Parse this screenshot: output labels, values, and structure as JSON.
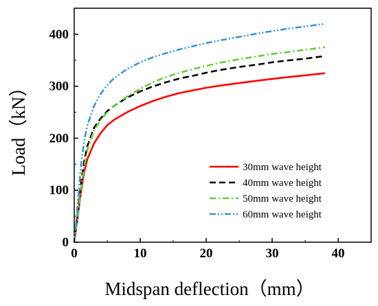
{
  "chart_data": {
    "type": "line",
    "title": "",
    "xlabel": "Midspan deflection（mm）",
    "ylabel": "Load（kN）",
    "xlim": [
      0,
      45
    ],
    "ylim": [
      0,
      450
    ],
    "xticks": [
      0,
      10,
      20,
      30,
      40
    ],
    "yticks": [
      0,
      100,
      200,
      300,
      400
    ],
    "grid": false,
    "legend_position": "bottom-right",
    "series": [
      {
        "name": "30mm wave height",
        "color": "#ff0000",
        "dash": "solid",
        "x": [
          0,
          0.5,
          1,
          1.5,
          2,
          3,
          4,
          5,
          6,
          8,
          10,
          12,
          14,
          16,
          18,
          20,
          22,
          25,
          28,
          30,
          32,
          35,
          38
        ],
        "y": [
          0,
          45,
          95,
          135,
          160,
          190,
          210,
          225,
          235,
          250,
          262,
          272,
          280,
          287,
          292,
          297,
          301,
          306,
          311,
          314,
          317,
          321,
          325
        ]
      },
      {
        "name": "40mm wave height",
        "color": "#000000",
        "dash": "dash",
        "x": [
          0,
          0.5,
          1,
          1.5,
          2,
          3,
          4,
          5,
          6,
          8,
          10,
          12,
          14,
          16,
          18,
          20,
          22,
          25,
          28,
          30,
          32,
          35,
          38
        ],
        "y": [
          0,
          55,
          110,
          155,
          185,
          220,
          238,
          252,
          262,
          278,
          290,
          300,
          308,
          315,
          320,
          326,
          331,
          337,
          342,
          346,
          349,
          353,
          358
        ]
      },
      {
        "name": "50mm wave height",
        "color": "#66cc33",
        "dash": "dashdot",
        "x": [
          0,
          0.5,
          1,
          1.5,
          2,
          3,
          4,
          5,
          6,
          8,
          10,
          12,
          14,
          16,
          18,
          20,
          22,
          25,
          28,
          30,
          32,
          35,
          38
        ],
        "y": [
          0,
          45,
          100,
          145,
          178,
          215,
          235,
          250,
          262,
          280,
          295,
          308,
          318,
          326,
          333,
          339,
          345,
          352,
          358,
          362,
          365,
          370,
          375
        ]
      },
      {
        "name": "60mm wave height",
        "color": "#3a96d6",
        "dash": "dashdotdot",
        "x": [
          0,
          0.5,
          1,
          1.5,
          2,
          3,
          4,
          5,
          6,
          8,
          10,
          12,
          14,
          16,
          18,
          20,
          22,
          25,
          28,
          30,
          32,
          35,
          38
        ],
        "y": [
          0,
          70,
          145,
          195,
          225,
          262,
          285,
          302,
          315,
          333,
          346,
          356,
          364,
          371,
          377,
          383,
          388,
          395,
          402,
          406,
          410,
          415,
          420
        ]
      }
    ]
  }
}
